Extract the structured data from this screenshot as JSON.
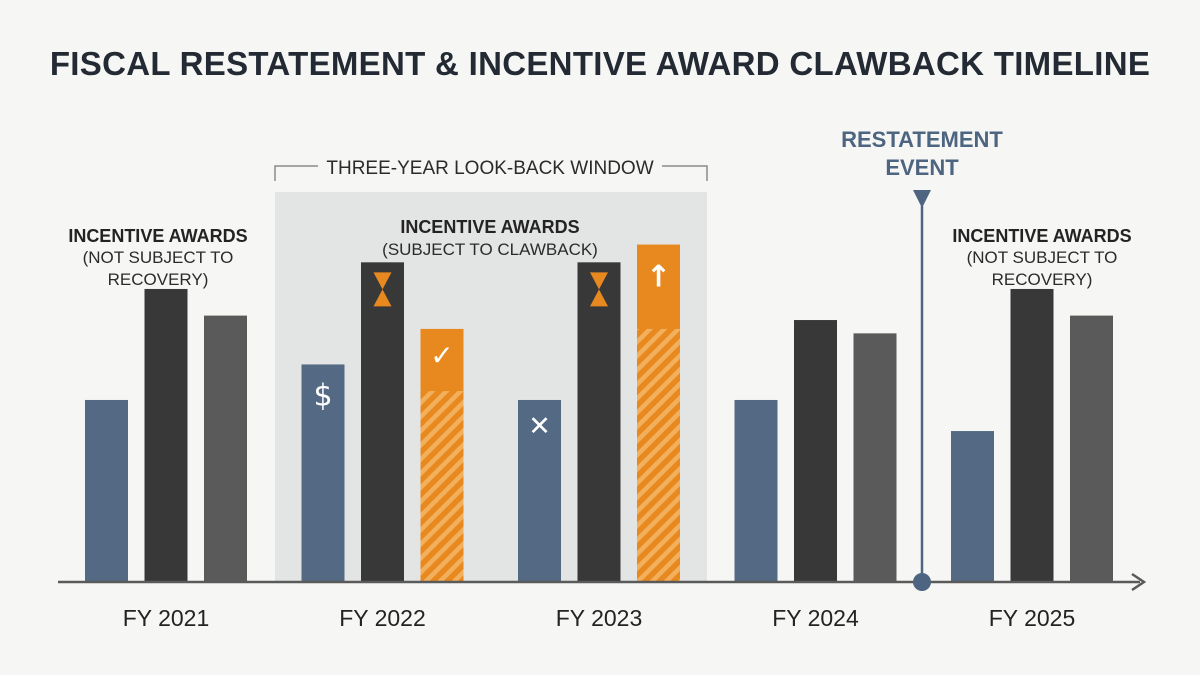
{
  "chart_data": {
    "type": "bar",
    "title": "FISCAL RESTATEMENT & INCENTIVE AWARD CLAWBACK TIMELINE",
    "categories": [
      "FY 2021",
      "FY 2022",
      "FY 2023",
      "FY 2024",
      "FY 2025"
    ],
    "series": [
      {
        "values": [
          41,
          49,
          41,
          41,
          34
        ],
        "color": "#546a84"
      },
      {
        "values": [
          66,
          72,
          72,
          59,
          66
        ],
        "color": "#383838"
      },
      {
        "values": [
          60,
          57,
          76,
          56,
          60
        ],
        "color": "#5a5a5a"
      }
    ],
    "clawback_overlay": {
      "series_index": 2,
      "categories": [
        "FY 2022",
        "FY 2023"
      ],
      "recoverable_values": [
        43,
        57
      ],
      "color": "#e8891f"
    },
    "ylim": [
      0,
      100
    ],
    "xlabel": "",
    "ylabel": "",
    "grid": false,
    "annotations": {
      "lookback_window": {
        "label": "THREE-YEAR LOOK-BACK WINDOW",
        "group_heading": "INCENTIVE AWARDS",
        "group_subheading": "(SUBJECT TO CLAWBACK)"
      },
      "left_group": {
        "heading": "INCENTIVE AWARDS",
        "subheading_lines": [
          "(NOT SUBJECT TO",
          "RECOVERY)"
        ]
      },
      "right_group": {
        "heading": "INCENTIVE AWARDS",
        "subheading_lines": [
          "(NOT SUBJECT TO",
          "RECOVERY)"
        ]
      },
      "restatement_event": {
        "label_lines": [
          "RESTATEMENT",
          "EVENT"
        ],
        "color": "#4d6580"
      }
    },
    "bar_icons": [
      {
        "category": "FY 2022",
        "series_index": 0,
        "icon": "dollar-icon",
        "glyph": "$"
      },
      {
        "category": "FY 2022",
        "series_index": 1,
        "icon": "hourglass-icon"
      },
      {
        "category": "FY 2022",
        "series_index": 2,
        "icon": "checkmark-icon",
        "glyph": "✓"
      },
      {
        "category": "FY 2023",
        "series_index": 0,
        "icon": "x-mark-icon",
        "glyph": "✕"
      },
      {
        "category": "FY 2023",
        "series_index": 1,
        "icon": "hourglass-icon"
      },
      {
        "category": "FY 2023",
        "series_index": 2,
        "icon": "up-arrow-icon",
        "glyph": "↑"
      }
    ]
  }
}
